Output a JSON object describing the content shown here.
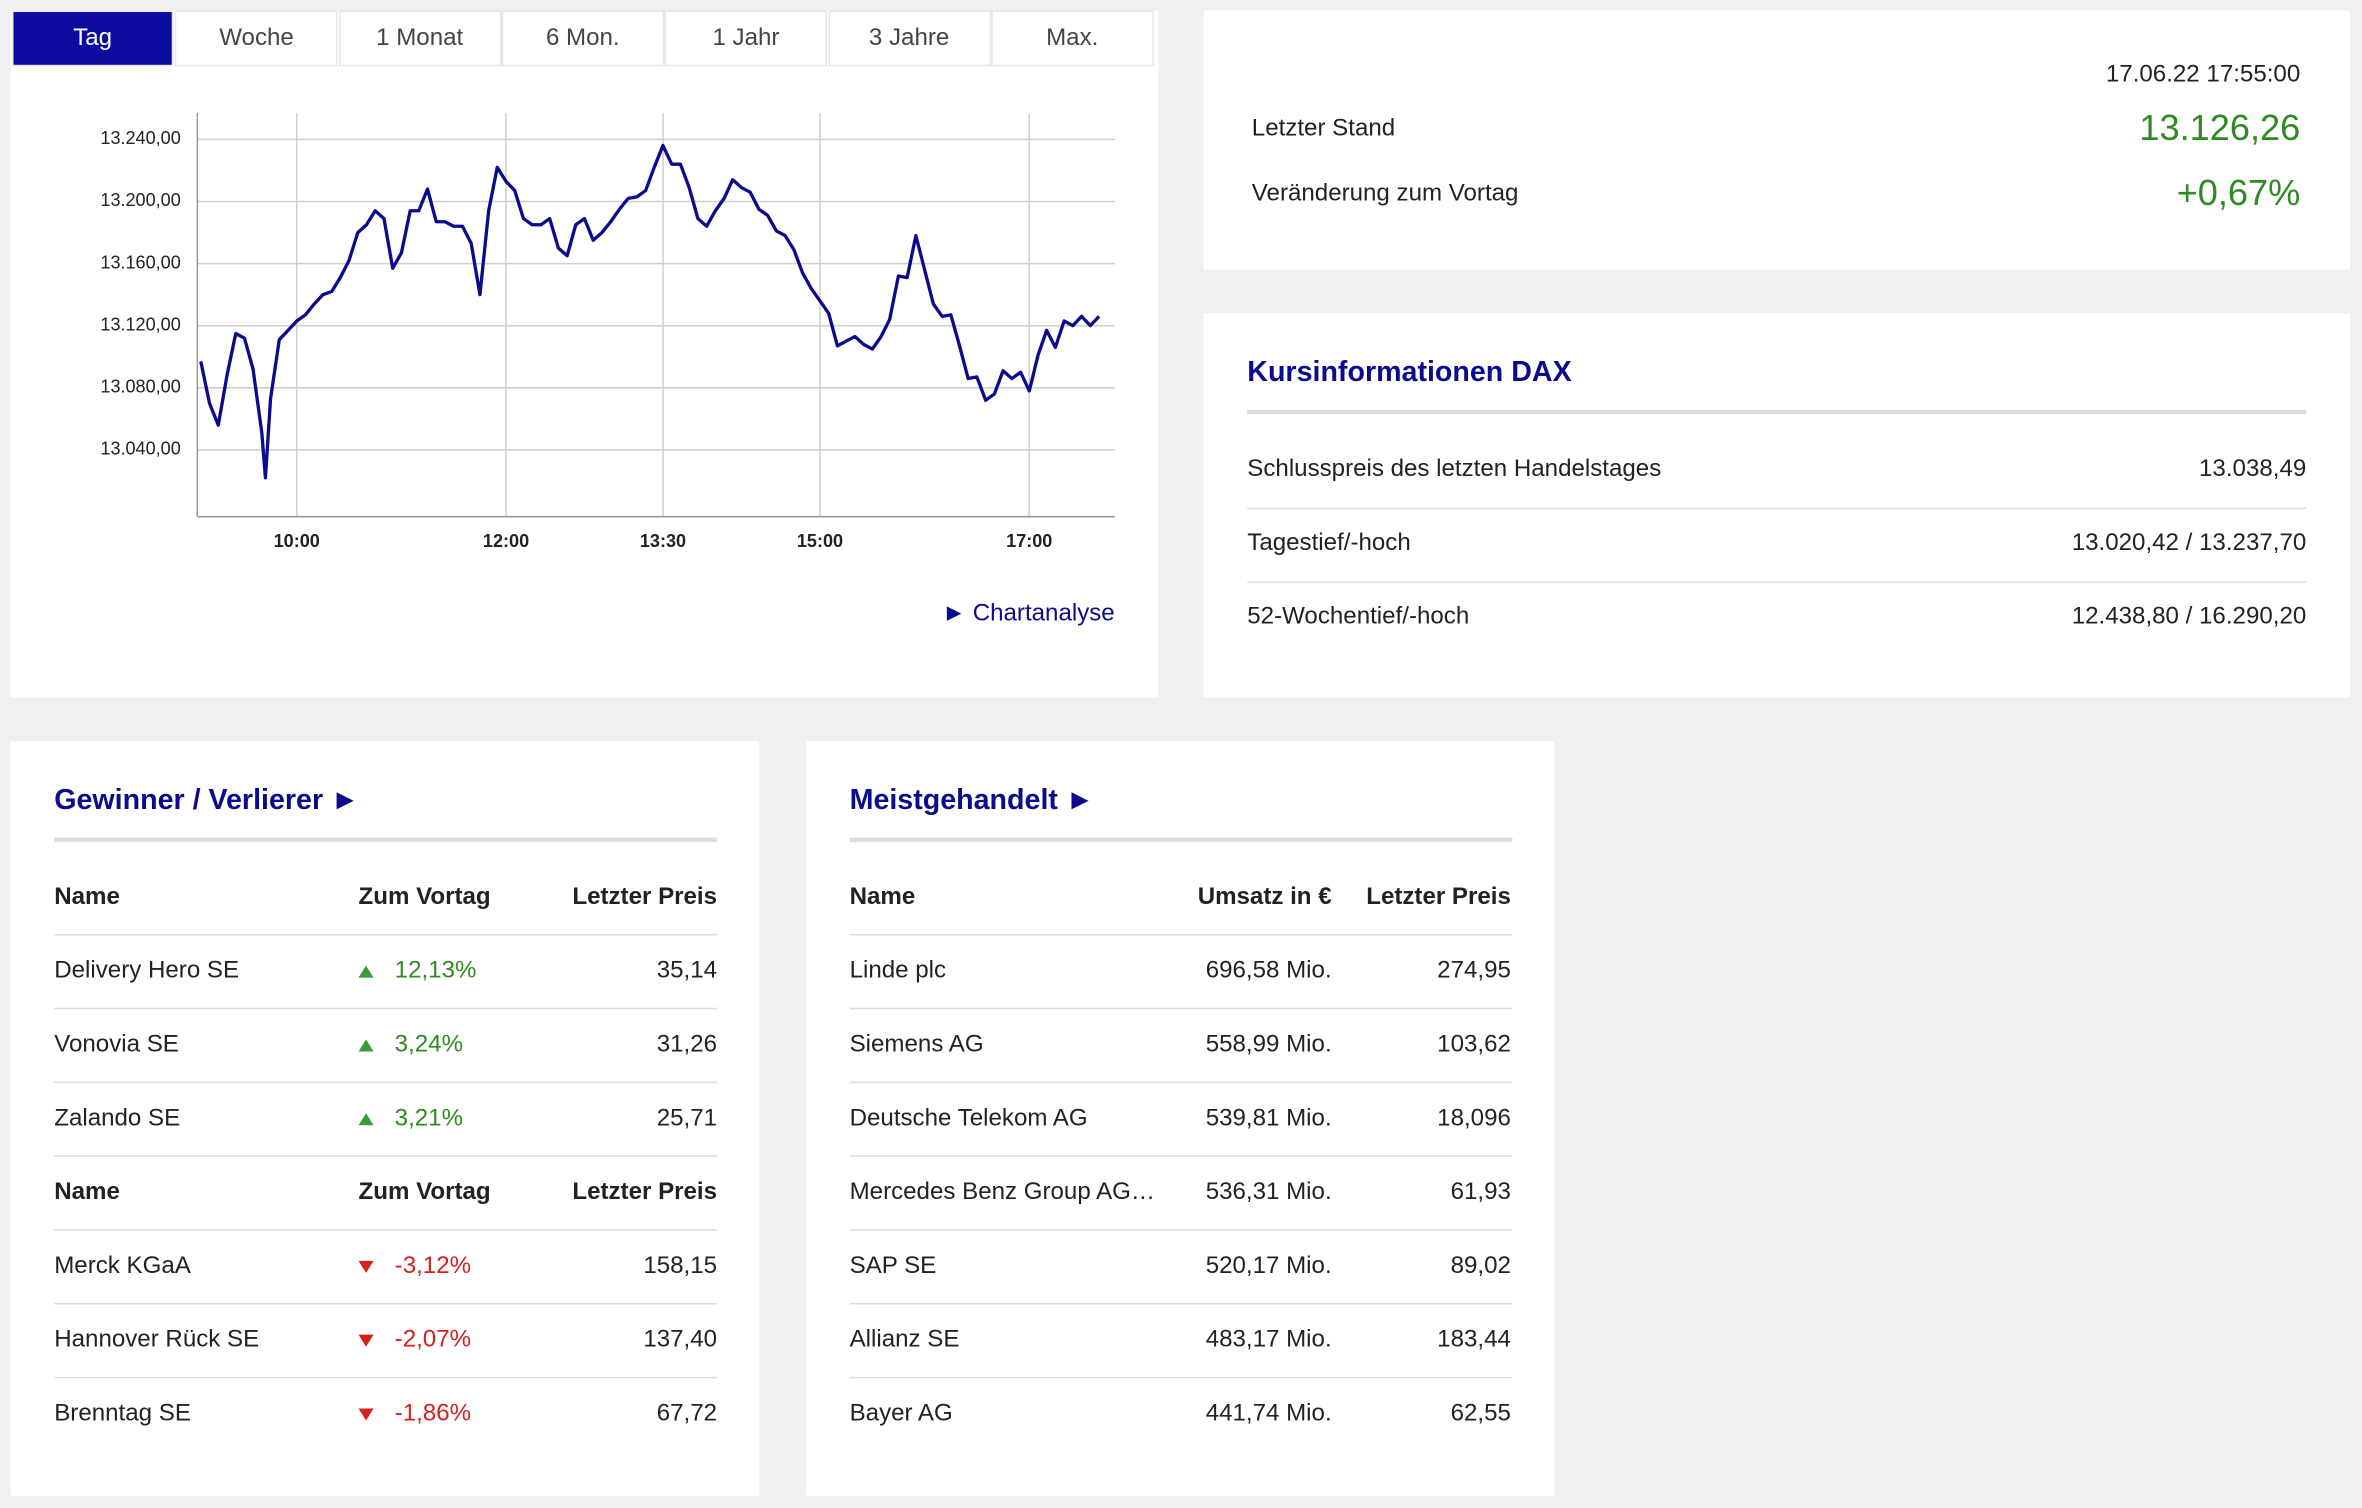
{
  "tabs": [
    "Tag",
    "Woche",
    "1 Monat",
    "6 Mon.",
    "1 Jahr",
    "3 Jahre",
    "Max."
  ],
  "active_tab": "Tag",
  "chart_data": {
    "type": "line",
    "color": "#0b0b8e",
    "x": [
      "09:05",
      "09:10",
      "09:15",
      "09:20",
      "09:25",
      "09:30",
      "09:35",
      "09:40",
      "09:42",
      "09:45",
      "09:50",
      "09:55",
      "10:00",
      "10:05",
      "10:10",
      "10:15",
      "10:20",
      "10:25",
      "10:30",
      "10:35",
      "10:40",
      "10:45",
      "10:50",
      "10:55",
      "11:00",
      "11:05",
      "11:10",
      "11:15",
      "11:20",
      "11:25",
      "11:30",
      "11:35",
      "11:40",
      "11:45",
      "11:50",
      "11:55",
      "12:00",
      "12:05",
      "12:10",
      "12:15",
      "12:20",
      "12:25",
      "12:30",
      "12:35",
      "12:40",
      "12:45",
      "12:50",
      "12:55",
      "13:00",
      "13:05",
      "13:10",
      "13:15",
      "13:20",
      "13:25",
      "13:30",
      "13:35",
      "13:40",
      "13:45",
      "13:50",
      "13:55",
      "14:00",
      "14:05",
      "14:10",
      "14:15",
      "14:20",
      "14:25",
      "14:30",
      "14:35",
      "14:40",
      "14:45",
      "14:50",
      "14:55",
      "15:00",
      "15:05",
      "15:10",
      "15:15",
      "15:20",
      "15:25",
      "15:30",
      "15:35",
      "15:40",
      "15:45",
      "15:50",
      "15:55",
      "16:00",
      "16:05",
      "16:10",
      "16:15",
      "16:20",
      "16:25",
      "16:30",
      "16:35",
      "16:40",
      "16:45",
      "16:50",
      "16:55",
      "17:00",
      "17:05",
      "17:10",
      "17:15",
      "17:20",
      "17:25",
      "17:30",
      "17:35",
      "17:40"
    ],
    "values": [
      13097,
      13070,
      13056,
      13088,
      13115,
      13112,
      13092,
      13051,
      13022,
      13073,
      13111,
      13117,
      13123,
      13127,
      13134,
      13140,
      13142,
      13151,
      13162,
      13180,
      13185,
      13194,
      13189,
      13157,
      13167,
      13194,
      13194,
      13208,
      13187,
      13187,
      13184,
      13184,
      13173,
      13140,
      13194,
      13222,
      13213,
      13207,
      13189,
      13185,
      13185,
      13189,
      13170,
      13165,
      13185,
      13189,
      13175,
      13180,
      13187,
      13195,
      13202,
      13203,
      13207,
      13222,
      13236,
      13224,
      13224,
      13209,
      13189,
      13184,
      13194,
      13202,
      13214,
      13209,
      13206,
      13195,
      13191,
      13181,
      13178,
      13169,
      13154,
      13144,
      13136,
      13128,
      13107,
      13110,
      13113,
      13108,
      13105,
      13113,
      13124,
      13152,
      13151,
      13178,
      13156,
      13134,
      13126,
      13127,
      13107,
      13086,
      13087,
      13072,
      13076,
      13091,
      13086,
      13090,
      13078,
      13101,
      13117,
      13106,
      13123,
      13120,
      13126,
      13120,
      13126
    ],
    "xlim": [
      "09:03",
      "17:49"
    ],
    "xticks": [
      "10:00",
      "12:00",
      "13:30",
      "15:00",
      "17:00"
    ],
    "ylim": [
      12997,
      13257
    ],
    "yticks": [
      {
        "value": 13040,
        "label": "13.040,00"
      },
      {
        "value": 13080,
        "label": "13.080,00"
      },
      {
        "value": 13120,
        "label": "13.120,00"
      },
      {
        "value": 13160,
        "label": "13.160,00"
      },
      {
        "value": 13200,
        "label": "13.200,00"
      },
      {
        "value": 13240,
        "label": "13.240,00"
      }
    ],
    "grid": true
  },
  "chart_link": "► Chartanalyse",
  "quote": {
    "timestamp": "17.06.22 17:55:00",
    "rows": [
      {
        "label": "Letzter Stand",
        "value": "13.126,26"
      },
      {
        "label": "Veränderung zum Vortag",
        "value": "+0,67%"
      }
    ]
  },
  "info": {
    "title": "Kursinformationen DAX",
    "rows": [
      [
        "Schlusspreis des letzten Handelstages",
        "13.038,49"
      ],
      [
        "Tagestief/-hoch",
        "13.020,42 / 13.237,70"
      ],
      [
        "52-Wochentief/-hoch",
        "12.438,80 / 16.290,20"
      ]
    ]
  },
  "movers": {
    "title": "Gewinner / Verlierer ►",
    "header": [
      "Name",
      "Zum Vortag",
      "Letzter Preis"
    ],
    "gainers": [
      [
        "Delivery Hero SE",
        "12,13%",
        "35,14"
      ],
      [
        "Vonovia SE",
        "3,24%",
        "31,26"
      ],
      [
        "Zalando SE",
        "3,21%",
        "25,71"
      ]
    ],
    "losers_header": [
      "Name",
      "Zum Vortag",
      "Letzter Preis"
    ],
    "losers": [
      [
        "Merck KGaA",
        "-3,12%",
        "158,15"
      ],
      [
        "Hannover Rück SE",
        "-2,07%",
        "137,40"
      ],
      [
        "Brenntag SE",
        "-1,86%",
        "67,72"
      ]
    ]
  },
  "most_traded": {
    "title": "Meistgehandelt ►",
    "header": [
      "Name",
      "Umsatz in €",
      "Letzter Preis"
    ],
    "rows": [
      [
        "Linde plc",
        "696,58 Mio.",
        "274,95"
      ],
      [
        "Siemens AG",
        "558,99 Mio.",
        "103,62"
      ],
      [
        "Deutsche Telekom AG",
        "539,81 Mio.",
        "18,096"
      ],
      [
        "Mercedes Benz Group AG…",
        "536,31 Mio.",
        "61,93"
      ],
      [
        "SAP SE",
        "520,17 Mio.",
        "89,02"
      ],
      [
        "Allianz SE",
        "483,17 Mio.",
        "183,44"
      ],
      [
        "Bayer AG",
        "441,74 Mio.",
        "62,55"
      ]
    ]
  }
}
